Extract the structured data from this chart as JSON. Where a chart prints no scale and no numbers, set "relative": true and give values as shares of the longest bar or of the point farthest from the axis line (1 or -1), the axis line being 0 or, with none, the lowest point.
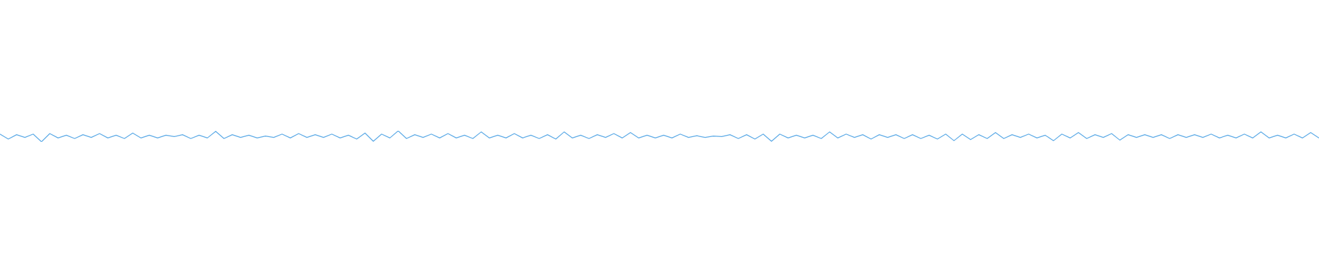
{
  "chart_data": {
    "type": "line",
    "relative": true,
    "color": "#5aa9e6",
    "marker": "none",
    "categories": [
      null,
      null,
      null,
      null,
      null,
      null,
      null,
      null,
      null,
      null,
      null,
      null,
      null,
      null,
      null,
      null,
      null,
      null,
      null,
      null,
      null,
      null,
      null,
      null,
      null,
      null,
      null,
      null,
      null,
      null,
      null,
      null,
      null,
      null,
      null,
      null,
      null,
      null,
      null,
      null,
      null,
      null,
      null,
      null,
      null,
      null,
      null,
      null,
      null,
      null,
      null,
      null,
      null,
      null,
      null,
      null,
      null,
      null,
      null,
      null,
      null,
      null,
      null,
      null,
      null,
      null,
      null,
      null,
      null,
      null,
      null,
      null,
      null,
      null,
      null,
      null,
      null,
      null,
      null,
      null,
      null,
      null,
      null,
      null,
      null,
      null,
      null,
      null,
      null,
      null,
      null,
      null,
      null,
      null,
      null,
      null,
      null,
      null,
      null,
      null,
      null,
      null,
      null,
      null,
      null,
      null,
      null,
      null,
      null,
      null,
      null,
      null,
      null,
      null,
      null,
      null,
      null,
      null,
      null,
      null,
      null,
      null,
      null,
      null,
      null,
      null,
      null,
      null,
      null,
      null,
      null,
      null,
      null,
      null,
      null,
      null,
      null,
      null,
      null,
      null,
      null,
      null,
      null,
      null,
      null,
      null,
      null,
      null,
      null,
      null,
      null,
      null,
      null,
      null,
      null,
      null,
      null,
      null,
      null,
      null
    ],
    "values": [
      0.7,
      0.25,
      0.65,
      0.4,
      0.7,
      0,
      0.75,
      0.35,
      0.6,
      0.3,
      0.65,
      0.4,
      0.75,
      0.35,
      0.6,
      0.3,
      0.8,
      0.35,
      0.6,
      0.35,
      0.6,
      0.475,
      0.65,
      0.3,
      0.6,
      0.35,
      0.95,
      0.3,
      0.65,
      0.4,
      0.6,
      0.35,
      0.525,
      0.4,
      0.7,
      0.35,
      0.75,
      0.4,
      0.65,
      0.4,
      0.7,
      0.35,
      0.6,
      0.25,
      0.8,
      0.05,
      0.7,
      0.35,
      1,
      0.3,
      0.65,
      0.4,
      0.7,
      0.35,
      0.75,
      0.35,
      0.6,
      0.3,
      0.9,
      0.35,
      0.6,
      0.35,
      0.75,
      0.35,
      0.6,
      0.3,
      0.65,
      0.25,
      0.9,
      0.35,
      0.6,
      0.3,
      0.65,
      0.4,
      0.75,
      0.35,
      0.85,
      0.35,
      0.6,
      0.35,
      0.6,
      0.35,
      0.7,
      0.4,
      0.55,
      0.4,
      0.525,
      0.475,
      0.65,
      0.3,
      0.65,
      0.25,
      0.7,
      0.05,
      0.7,
      0.35,
      0.6,
      0.35,
      0.6,
      0.3,
      0.9,
      0.35,
      0.7,
      0.4,
      0.65,
      0.25,
      0.65,
      0.4,
      0.65,
      0.3,
      0.65,
      0.3,
      0.6,
      0.25,
      0.7,
      0.1,
      0.7,
      0.2,
      0.65,
      0.3,
      0.85,
      0.3,
      0.65,
      0.4,
      0.7,
      0.35,
      0.6,
      0.1,
      0.7,
      0.35,
      0.85,
      0.3,
      0.65,
      0.4,
      0.75,
      0.15,
      0.65,
      0.4,
      0.65,
      0.4,
      0.65,
      0.3,
      0.65,
      0.4,
      0.65,
      0.4,
      0.7,
      0.35,
      0.6,
      0.35,
      0.7,
      0.35,
      0.9,
      0.35,
      0.6,
      0.35,
      0.7,
      0.35,
      0.85,
      0.35
    ]
  }
}
